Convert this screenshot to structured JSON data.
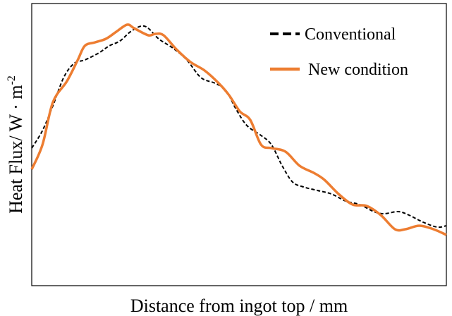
{
  "chart_data": {
    "type": "line",
    "x_label": "Distance from ingot top / mm",
    "y_label": "Heat Flux/ W · m",
    "y_label_superscript": "-2",
    "xlim": [
      0,
      100
    ],
    "ylim": [
      0,
      100
    ],
    "legend": "top-right",
    "series": [
      {
        "name": "Conventional",
        "color": "#000000",
        "dash": true,
        "x": [
          0,
          2.6,
          5.1,
          7.7,
          10.2,
          12.8,
          16.2,
          18.7,
          21.3,
          23.8,
          26.4,
          28.1,
          30.6,
          34,
          37.4,
          40.8,
          44.2,
          46.8,
          49.3,
          51.9,
          55.3,
          57.8,
          60.4,
          62.9,
          65.5,
          68.9,
          72.3,
          75.7,
          79.1,
          82.5,
          85,
          88.4,
          91,
          94.4,
          97.8,
          100
        ],
        "values": [
          48.75,
          55,
          63.75,
          73.75,
          78.75,
          80,
          82.5,
          85,
          86.75,
          90,
          92,
          91.25,
          87.5,
          84.25,
          80,
          73.75,
          71.75,
          69.25,
          62.5,
          56.75,
          53.25,
          50,
          42.5,
          36.75,
          35,
          33.75,
          32.5,
          30,
          28.75,
          26.25,
          25.5,
          26.25,
          25,
          22.5,
          20.75,
          21.25
        ]
      },
      {
        "name": "New condition",
        "color": "#ed7d31",
        "dash": false,
        "x": [
          0,
          2.6,
          5.1,
          8.5,
          11.1,
          12.8,
          15.3,
          17.9,
          20.4,
          23,
          24.7,
          28.1,
          29.8,
          31.8,
          34.9,
          38.3,
          41.7,
          45.1,
          47.6,
          50.2,
          52.7,
          55.3,
          57.8,
          61.2,
          64.6,
          68,
          70.6,
          74,
          77.4,
          80.8,
          84.2,
          87.6,
          90.1,
          93.5,
          96.9,
          100
        ],
        "values": [
          41.25,
          50,
          65,
          72.5,
          80,
          85,
          86.25,
          87.5,
          90,
          92.5,
          91.25,
          88.75,
          89.25,
          88.75,
          83.75,
          79.25,
          76.25,
          71.75,
          67.5,
          61.75,
          58.75,
          50,
          48.75,
          47.5,
          42.5,
          40,
          37.5,
          32.5,
          28.75,
          28.25,
          25,
          20,
          20,
          21.25,
          20,
          18
        ]
      }
    ]
  }
}
